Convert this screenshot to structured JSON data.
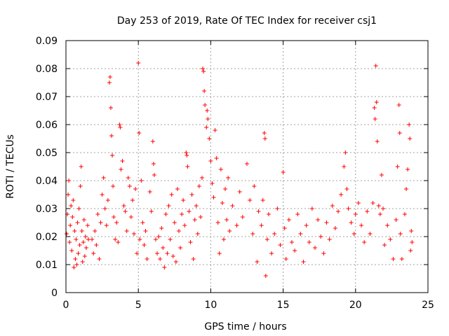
{
  "chart_data": {
    "type": "scatter",
    "title": "Day 253 of 2019, Rate Of TEC Index for receiver csj1",
    "xlabel": "GPS time / hours",
    "ylabel": "ROTI / TECUs",
    "xlim": [
      0,
      25
    ],
    "ylim": [
      0,
      0.09
    ],
    "grid": true,
    "marker": "+",
    "marker_color": "#ff0000",
    "x_ticks": [
      0,
      5,
      10,
      15,
      20,
      25
    ],
    "x_tick_labels": [
      "0",
      "5",
      "10",
      "15",
      "20",
      "25"
    ],
    "y_ticks": [
      0,
      0.01,
      0.02,
      0.03,
      0.04,
      0.05,
      0.06,
      0.07,
      0.08,
      0.09
    ],
    "y_tick_labels": [
      "0",
      "0.01",
      "0.02",
      "0.03",
      "0.04",
      "0.05",
      "0.06",
      "0.07",
      "0.08",
      "0.09"
    ],
    "series": [
      {
        "name": "ROTI",
        "points": [
          [
            0.05,
            0.021
          ],
          [
            0.1,
            0.028
          ],
          [
            0.15,
            0.035
          ],
          [
            0.2,
            0.04
          ],
          [
            0.25,
            0.018
          ],
          [
            0.3,
            0.024
          ],
          [
            0.35,
            0.031
          ],
          [
            0.4,
            0.015
          ],
          [
            0.45,
            0.027
          ],
          [
            0.5,
            0.033
          ],
          [
            0.55,
            0.009
          ],
          [
            0.6,
            0.022
          ],
          [
            0.65,
            0.012
          ],
          [
            0.7,
            0.019
          ],
          [
            0.75,
            0.01
          ],
          [
            0.8,
            0.025
          ],
          [
            0.85,
            0.014
          ],
          [
            0.9,
            0.03
          ],
          [
            0.95,
            0.017
          ],
          [
            1.0,
            0.038
          ],
          [
            1.05,
            0.045
          ],
          [
            1.1,
            0.022
          ],
          [
            1.15,
            0.011
          ],
          [
            1.2,
            0.018
          ],
          [
            1.25,
            0.026
          ],
          [
            1.3,
            0.013
          ],
          [
            1.35,
            0.02
          ],
          [
            1.4,
            0.016
          ],
          [
            1.5,
            0.024
          ],
          [
            1.55,
            0.019
          ],
          [
            1.8,
            0.019
          ],
          [
            1.9,
            0.014
          ],
          [
            2.0,
            0.022
          ],
          [
            2.1,
            0.017
          ],
          [
            2.2,
            0.028
          ],
          [
            2.3,
            0.012
          ],
          [
            2.4,
            0.025
          ],
          [
            2.5,
            0.035
          ],
          [
            2.6,
            0.041
          ],
          [
            2.7,
            0.03
          ],
          [
            2.8,
            0.024
          ],
          [
            2.9,
            0.033
          ],
          [
            3.0,
            0.075
          ],
          [
            3.05,
            0.077
          ],
          [
            3.1,
            0.066
          ],
          [
            3.15,
            0.056
          ],
          [
            3.2,
            0.049
          ],
          [
            3.25,
            0.038
          ],
          [
            3.3,
            0.027
          ],
          [
            3.4,
            0.019
          ],
          [
            3.5,
            0.025
          ],
          [
            3.6,
            0.018
          ],
          [
            3.7,
            0.06
          ],
          [
            3.75,
            0.059
          ],
          [
            3.8,
            0.044
          ],
          [
            3.9,
            0.047
          ],
          [
            4.0,
            0.031
          ],
          [
            4.1,
            0.029
          ],
          [
            4.2,
            0.022
          ],
          [
            4.3,
            0.041
          ],
          [
            4.4,
            0.038
          ],
          [
            4.5,
            0.027
          ],
          [
            4.6,
            0.033
          ],
          [
            4.7,
            0.021
          ],
          [
            4.8,
            0.037
          ],
          [
            4.9,
            0.014
          ],
          [
            5.0,
            0.082
          ],
          [
            5.05,
            0.057
          ],
          [
            5.1,
            0.019
          ],
          [
            5.2,
            0.04
          ],
          [
            5.3,
            0.025
          ],
          [
            5.4,
            0.017
          ],
          [
            5.5,
            0.022
          ],
          [
            5.6,
            0.012
          ],
          [
            5.8,
            0.036
          ],
          [
            5.9,
            0.029
          ],
          [
            6.0,
            0.054
          ],
          [
            6.05,
            0.046
          ],
          [
            6.1,
            0.042
          ],
          [
            6.2,
            0.019
          ],
          [
            6.3,
            0.014
          ],
          [
            6.4,
            0.02
          ],
          [
            6.5,
            0.012
          ],
          [
            6.6,
            0.023
          ],
          [
            6.7,
            0.016
          ],
          [
            6.8,
            0.009
          ],
          [
            6.9,
            0.028
          ],
          [
            7.0,
            0.014
          ],
          [
            7.1,
            0.031
          ],
          [
            7.2,
            0.019
          ],
          [
            7.3,
            0.035
          ],
          [
            7.4,
            0.013
          ],
          [
            7.5,
            0.025
          ],
          [
            7.6,
            0.011
          ],
          [
            7.7,
            0.037
          ],
          [
            7.8,
            0.022
          ],
          [
            7.9,
            0.016
          ],
          [
            8.0,
            0.028
          ],
          [
            8.1,
            0.033
          ],
          [
            8.2,
            0.024
          ],
          [
            8.3,
            0.05
          ],
          [
            8.35,
            0.049
          ],
          [
            8.4,
            0.045
          ],
          [
            8.5,
            0.029
          ],
          [
            8.6,
            0.018
          ],
          [
            8.7,
            0.035
          ],
          [
            8.8,
            0.012
          ],
          [
            8.9,
            0.026
          ],
          [
            9.0,
            0.031
          ],
          [
            9.1,
            0.021
          ],
          [
            9.2,
            0.038
          ],
          [
            9.3,
            0.027
          ],
          [
            9.4,
            0.041
          ],
          [
            9.45,
            0.08
          ],
          [
            9.5,
            0.079
          ],
          [
            9.55,
            0.072
          ],
          [
            9.6,
            0.067
          ],
          [
            9.7,
            0.059
          ],
          [
            9.75,
            0.065
          ],
          [
            9.8,
            0.062
          ],
          [
            9.9,
            0.055
          ],
          [
            10.0,
            0.047
          ],
          [
            10.1,
            0.039
          ],
          [
            10.2,
            0.034
          ],
          [
            10.3,
            0.058
          ],
          [
            10.4,
            0.048
          ],
          [
            10.5,
            0.025
          ],
          [
            10.6,
            0.014
          ],
          [
            10.7,
            0.044
          ],
          [
            10.8,
            0.032
          ],
          [
            10.9,
            0.019
          ],
          [
            11.0,
            0.037
          ],
          [
            11.1,
            0.026
          ],
          [
            11.2,
            0.041
          ],
          [
            11.3,
            0.022
          ],
          [
            11.5,
            0.031
          ],
          [
            11.8,
            0.024
          ],
          [
            12.0,
            0.036
          ],
          [
            12.2,
            0.027
          ],
          [
            12.5,
            0.046
          ],
          [
            12.7,
            0.033
          ],
          [
            12.9,
            0.021
          ],
          [
            13.0,
            0.038
          ],
          [
            13.2,
            0.011
          ],
          [
            13.3,
            0.029
          ],
          [
            13.5,
            0.024
          ],
          [
            13.6,
            0.033
          ],
          [
            13.7,
            0.057
          ],
          [
            13.75,
            0.055
          ],
          [
            13.8,
            0.006
          ],
          [
            13.9,
            0.019
          ],
          [
            14.0,
            0.028
          ],
          [
            14.2,
            0.014
          ],
          [
            14.4,
            0.021
          ],
          [
            14.6,
            0.03
          ],
          [
            14.8,
            0.017
          ],
          [
            15.0,
            0.043
          ],
          [
            15.1,
            0.023
          ],
          [
            15.2,
            0.012
          ],
          [
            15.4,
            0.026
          ],
          [
            15.6,
            0.018
          ],
          [
            15.8,
            0.015
          ],
          [
            16.0,
            0.028
          ],
          [
            16.2,
            0.021
          ],
          [
            16.4,
            0.011
          ],
          [
            16.6,
            0.024
          ],
          [
            16.8,
            0.018
          ],
          [
            17.0,
            0.03
          ],
          [
            17.2,
            0.016
          ],
          [
            17.4,
            0.026
          ],
          [
            17.6,
            0.02
          ],
          [
            17.8,
            0.014
          ],
          [
            18.0,
            0.025
          ],
          [
            18.2,
            0.019
          ],
          [
            18.4,
            0.031
          ],
          [
            18.6,
            0.023
          ],
          [
            18.8,
            0.029
          ],
          [
            19.0,
            0.035
          ],
          [
            19.2,
            0.045
          ],
          [
            19.3,
            0.05
          ],
          [
            19.4,
            0.037
          ],
          [
            19.5,
            0.03
          ],
          [
            19.7,
            0.025
          ],
          [
            19.9,
            0.021
          ],
          [
            20.0,
            0.028
          ],
          [
            20.2,
            0.032
          ],
          [
            20.4,
            0.024
          ],
          [
            20.6,
            0.018
          ],
          [
            20.8,
            0.029
          ],
          [
            21.0,
            0.021
          ],
          [
            21.2,
            0.032
          ],
          [
            21.3,
            0.066
          ],
          [
            21.35,
            0.062
          ],
          [
            21.4,
            0.081
          ],
          [
            21.45,
            0.068
          ],
          [
            21.5,
            0.054
          ],
          [
            21.6,
            0.031
          ],
          [
            21.7,
            0.028
          ],
          [
            21.8,
            0.042
          ],
          [
            21.9,
            0.03
          ],
          [
            22.0,
            0.017
          ],
          [
            22.2,
            0.024
          ],
          [
            22.4,
            0.019
          ],
          [
            22.6,
            0.012
          ],
          [
            22.8,
            0.026
          ],
          [
            22.9,
            0.045
          ],
          [
            23.0,
            0.067
          ],
          [
            23.05,
            0.057
          ],
          [
            23.1,
            0.021
          ],
          [
            23.2,
            0.012
          ],
          [
            23.4,
            0.028
          ],
          [
            23.5,
            0.037
          ],
          [
            23.6,
            0.044
          ],
          [
            23.7,
            0.06
          ],
          [
            23.75,
            0.055
          ],
          [
            23.8,
            0.015
          ],
          [
            23.85,
            0.022
          ],
          [
            23.9,
            0.018
          ]
        ]
      }
    ]
  }
}
